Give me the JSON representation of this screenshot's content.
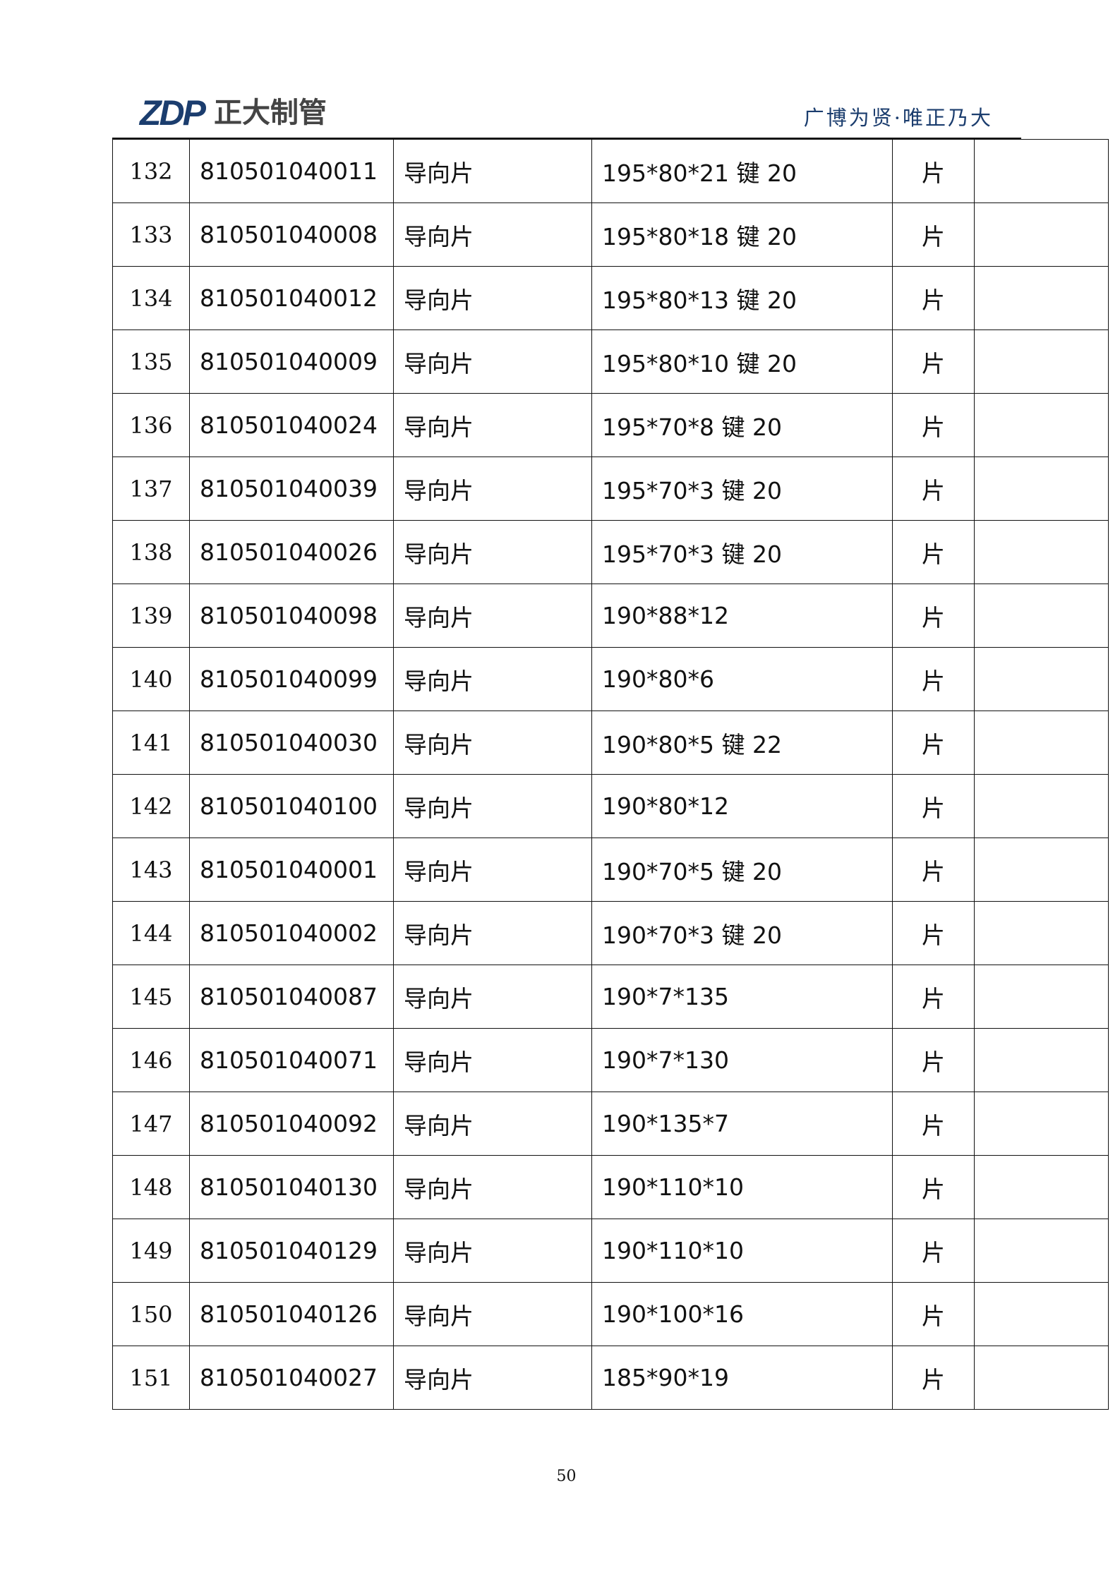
{
  "header": {
    "logo_text": "ZDP",
    "company_name": "正大制管",
    "slogan": "广博为贤·唯正乃大",
    "brand_color": "#1b3d6e"
  },
  "rows": [
    {
      "no": "132",
      "code": "810501040011",
      "name": "导向片",
      "spec": "195*80*21 键 20",
      "unit": "片",
      "remark": ""
    },
    {
      "no": "133",
      "code": "810501040008",
      "name": "导向片",
      "spec": "195*80*18 键 20",
      "unit": "片",
      "remark": ""
    },
    {
      "no": "134",
      "code": "810501040012",
      "name": "导向片",
      "spec": "195*80*13 键 20",
      "unit": "片",
      "remark": ""
    },
    {
      "no": "135",
      "code": "810501040009",
      "name": "导向片",
      "spec": "195*80*10 键 20",
      "unit": "片",
      "remark": ""
    },
    {
      "no": "136",
      "code": "810501040024",
      "name": "导向片",
      "spec": "195*70*8 键 20",
      "unit": "片",
      "remark": ""
    },
    {
      "no": "137",
      "code": "810501040039",
      "name": "导向片",
      "spec": "195*70*3 键 20",
      "unit": "片",
      "remark": ""
    },
    {
      "no": "138",
      "code": "810501040026",
      "name": "导向片",
      "spec": "195*70*3 键 20",
      "unit": "片",
      "remark": ""
    },
    {
      "no": "139",
      "code": "810501040098",
      "name": "导向片",
      "spec": "190*88*12",
      "unit": "片",
      "remark": ""
    },
    {
      "no": "140",
      "code": "810501040099",
      "name": "导向片",
      "spec": "190*80*6",
      "unit": "片",
      "remark": ""
    },
    {
      "no": "141",
      "code": "810501040030",
      "name": "导向片",
      "spec": "190*80*5 键 22",
      "unit": "片",
      "remark": ""
    },
    {
      "no": "142",
      "code": "810501040100",
      "name": "导向片",
      "spec": "190*80*12",
      "unit": "片",
      "remark": ""
    },
    {
      "no": "143",
      "code": "810501040001",
      "name": "导向片",
      "spec": "190*70*5 键 20",
      "unit": "片",
      "remark": ""
    },
    {
      "no": "144",
      "code": "810501040002",
      "name": "导向片",
      "spec": "190*70*3 键 20",
      "unit": "片",
      "remark": ""
    },
    {
      "no": "145",
      "code": "810501040087",
      "name": "导向片",
      "spec": "190*7*135",
      "unit": "片",
      "remark": ""
    },
    {
      "no": "146",
      "code": "810501040071",
      "name": "导向片",
      "spec": "190*7*130",
      "unit": "片",
      "remark": ""
    },
    {
      "no": "147",
      "code": "810501040092",
      "name": "导向片",
      "spec": "190*135*7",
      "unit": "片",
      "remark": ""
    },
    {
      "no": "148",
      "code": "810501040130",
      "name": "导向片",
      "spec": "190*110*10",
      "unit": "片",
      "remark": ""
    },
    {
      "no": "149",
      "code": "810501040129",
      "name": "导向片",
      "spec": "190*110*10",
      "unit": "片",
      "remark": ""
    },
    {
      "no": "150",
      "code": "810501040126",
      "name": "导向片",
      "spec": "190*100*16",
      "unit": "片",
      "remark": ""
    },
    {
      "no": "151",
      "code": "810501040027",
      "name": "导向片",
      "spec": "185*90*19",
      "unit": "片",
      "remark": ""
    }
  ],
  "footer": {
    "page_number": "50"
  }
}
